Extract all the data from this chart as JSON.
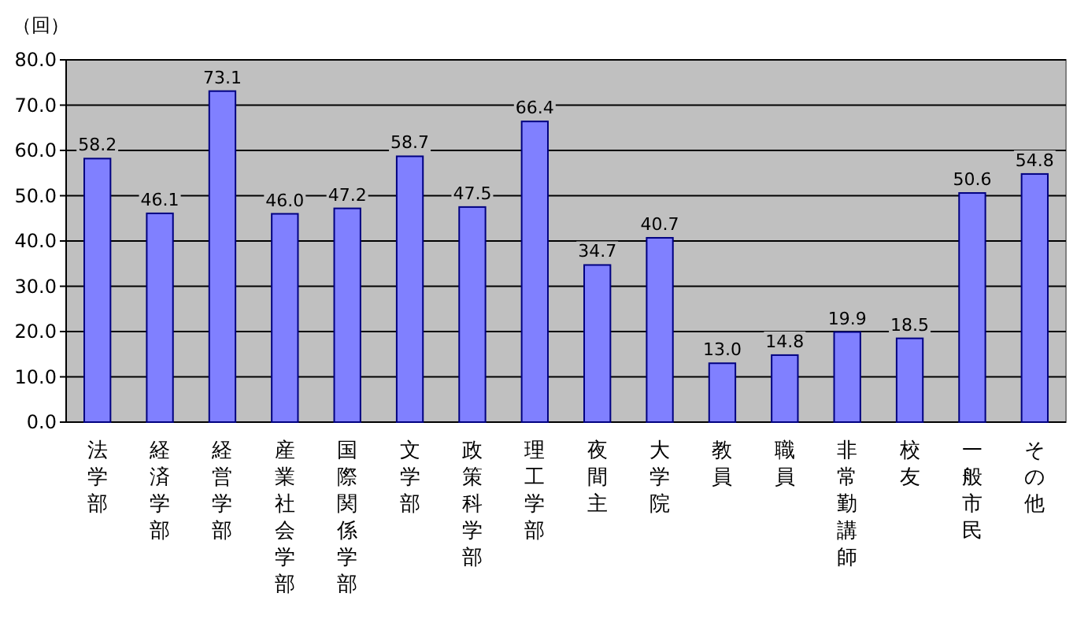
{
  "chart_data": {
    "type": "bar",
    "ylabel": "（回）",
    "categories": [
      "法学部",
      "経済学部",
      "経営学部",
      "産業社会学部",
      "国際関係学部",
      "文学部",
      "政策科学部",
      "理工学部",
      "夜間主",
      "大学院",
      "教員",
      "職員",
      "非常勤講師",
      "校友",
      "一般市民",
      "その他"
    ],
    "values": [
      58.2,
      46.1,
      73.1,
      46.0,
      47.2,
      58.7,
      47.5,
      66.4,
      34.7,
      40.7,
      13.0,
      14.8,
      19.9,
      18.5,
      50.6,
      54.8
    ],
    "value_labels": [
      "58.2",
      "46.1",
      "73.1",
      "46.0",
      "47.2",
      "58.7",
      "47.5",
      "66.4",
      "34.7",
      "40.7",
      "13.0",
      "14.8",
      "19.9",
      "18.5",
      "50.6",
      "54.8"
    ],
    "color": "#8080ff",
    "ylim": [
      0,
      80
    ],
    "yticks": [
      {
        "value": 0,
        "label": "0.0"
      },
      {
        "value": 10,
        "label": "10.0"
      },
      {
        "value": 20,
        "label": "20.0"
      },
      {
        "value": 30,
        "label": "30.0"
      },
      {
        "value": 40,
        "label": "40.0"
      },
      {
        "value": 50,
        "label": "50.0"
      },
      {
        "value": 60,
        "label": "60.0"
      },
      {
        "value": 70,
        "label": "70.0"
      },
      {
        "value": 80,
        "label": "80.0"
      }
    ],
    "grid": "y"
  }
}
